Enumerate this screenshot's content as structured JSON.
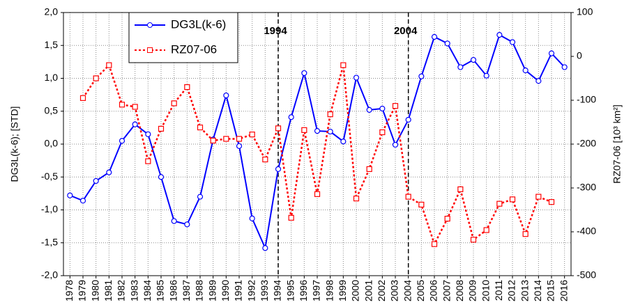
{
  "chart_data": {
    "type": "line",
    "y_label": "DG3L(k-6); [STD]",
    "y2_label": "RZ07-06 [10³ km²]",
    "categories": [
      "1978",
      "1979",
      "1980",
      "1981",
      "1982",
      "1983",
      "1984",
      "1985",
      "1986",
      "1987",
      "1988",
      "1989",
      "1990",
      "1991",
      "1992",
      "1993",
      "1994",
      "1995",
      "1996",
      "1997",
      "1998",
      "1999",
      "2000",
      "2001",
      "2002",
      "2003",
      "2004",
      "2005",
      "2006",
      "2007",
      "2008",
      "2009",
      "2010",
      "2011",
      "2012",
      "2013",
      "2014",
      "2015",
      "2016"
    ],
    "series": [
      {
        "name": "DG3L(k-6)",
        "color": "#0000ff",
        "marker": "circle",
        "dash": "solid",
        "values": [
          -0.78,
          -0.86,
          -0.56,
          -0.43,
          0.05,
          0.3,
          0.15,
          -0.5,
          -1.17,
          -1.22,
          -0.8,
          0.07,
          0.74,
          -0.03,
          -1.13,
          -1.58,
          -0.38,
          0.41,
          1.08,
          0.2,
          0.19,
          0.04,
          1.01,
          0.52,
          0.54,
          -0.01,
          0.37,
          1.03,
          1.63,
          1.53,
          1.17,
          1.28,
          1.04,
          1.66,
          1.55,
          1.12,
          0.96,
          1.38,
          1.17
        ]
      },
      {
        "name": "RZ07-06",
        "color": "#ff0000",
        "marker": "square",
        "dash": "dotted",
        "axis": "y2",
        "values": [
          null,
          -95,
          -50,
          -20,
          -110,
          -115,
          -239,
          -165,
          -107,
          -70,
          -162,
          -192,
          -188,
          -188,
          -178,
          -235,
          -164,
          -368,
          -168,
          -314,
          -132,
          -20,
          -324,
          -257,
          -173,
          -113,
          -320,
          -338,
          -428,
          -370,
          -303,
          -418,
          -396,
          -336,
          -326,
          -405,
          -320,
          -332,
          null
        ]
      }
    ],
    "ylim": [
      -2,
      2
    ],
    "yticks": [
      {
        "value": -2,
        "label": "-2,0"
      },
      {
        "value": -1.5,
        "label": "-1,5"
      },
      {
        "value": -1,
        "label": "-1,0"
      },
      {
        "value": -0.5,
        "label": "-0,5"
      },
      {
        "value": 0,
        "label": "0,0"
      },
      {
        "value": 0.5,
        "label": "0,5"
      },
      {
        "value": 1,
        "label": "1,0"
      },
      {
        "value": 1.5,
        "label": "1,5"
      },
      {
        "value": 2,
        "label": "2,0"
      }
    ],
    "y2lim": [
      -500,
      100
    ],
    "y2ticks": [
      -500,
      -400,
      -300,
      -200,
      -100,
      0,
      100
    ],
    "grid": true,
    "legend": "top-left",
    "annotations": [
      {
        "text": "1994",
        "x": "1994"
      },
      {
        "text": "2004",
        "x": "2004"
      }
    ]
  }
}
